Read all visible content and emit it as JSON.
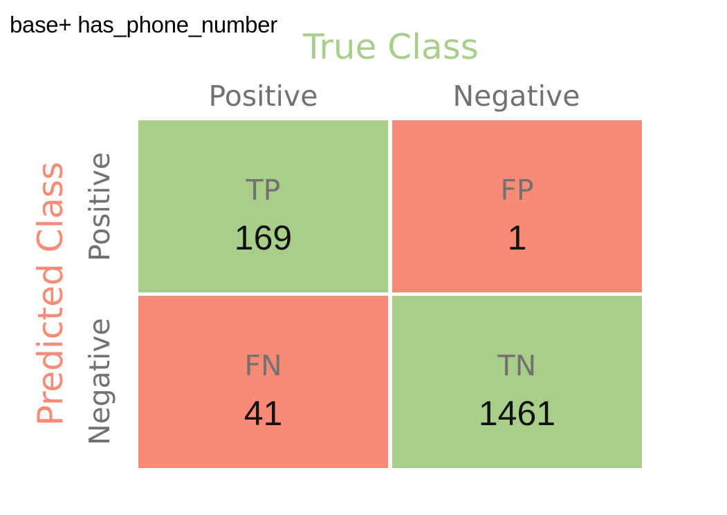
{
  "caption": "base+ has_phone_number",
  "axis": {
    "true_class": "True Class",
    "predicted_class": "Predicted Class",
    "true_color": "#A7CF8A",
    "predicted_color": "#F88B76"
  },
  "columns": [
    "Positive",
    "Negative"
  ],
  "rows": [
    "Positive",
    "Negative"
  ],
  "cells": {
    "tp": {
      "label": "TP",
      "value": "169",
      "color": "#A7CF8A"
    },
    "fp": {
      "label": "FP",
      "value": "1",
      "color": "#F88B76"
    },
    "fn": {
      "label": "FN",
      "value": "41",
      "color": "#F88B76"
    },
    "tn": {
      "label": "TN",
      "value": "1461",
      "color": "#A7CF8A"
    }
  }
}
